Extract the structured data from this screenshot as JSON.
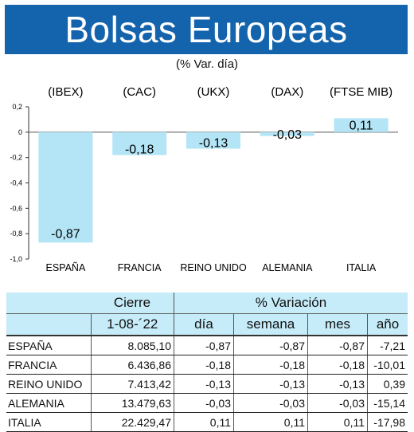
{
  "header": {
    "title": "Bolsas Europeas",
    "subtitle": "(% Var. día)"
  },
  "chart_data": {
    "type": "bar",
    "indices": [
      "(IBEX)",
      "(CAC)",
      "(UKX)",
      "(DAX)",
      "(FTSE MIB)"
    ],
    "categories": [
      "ESPAÑA",
      "FRANCIA",
      "REINO UNIDO",
      "ALEMANIA",
      "ITALIA"
    ],
    "values": [
      -0.87,
      -0.18,
      -0.13,
      -0.03,
      0.11
    ],
    "value_labels": [
      "-0,87",
      "-0,18",
      "-0,13",
      "-0,03",
      "0,11"
    ],
    "ylim": [
      -1.0,
      0.2
    ],
    "yticks": [
      0.2,
      0,
      -0.2,
      -0.4,
      -0.6,
      -0.8,
      -1.0
    ],
    "ytick_labels": [
      "0,2",
      "0",
      "-0,2",
      "-0,4",
      "-0,6",
      "-0,8",
      "-1,0"
    ],
    "grid": false,
    "bar_color": "#b3e5f6"
  },
  "table": {
    "group_cierre": "Cierre",
    "group_variacion": "% Variación",
    "date": "1-08-´22",
    "col_dia": "día",
    "col_semana": "semana",
    "col_mes": "mes",
    "col_anio": "año",
    "rows": [
      {
        "pais": "ESPAÑA",
        "cierre": "8.085,10",
        "dia": "-0,87",
        "semana": "-0,87",
        "mes": "-0,87",
        "anio": "-7,21"
      },
      {
        "pais": "FRANCIA",
        "cierre": "6.436,86",
        "dia": "-0,18",
        "semana": "-0,18",
        "mes": "-0,18",
        "anio": "-10,01"
      },
      {
        "pais": "REINO UNIDO",
        "cierre": "7.413,42",
        "dia": "-0,13",
        "semana": "-0,13",
        "mes": "-0,13",
        "anio": "0,39"
      },
      {
        "pais": "ALEMANIA",
        "cierre": "13.479,63",
        "dia": "-0,03",
        "semana": "-0,03",
        "mes": "-0,03",
        "anio": "-15,14"
      },
      {
        "pais": "ITALIA",
        "cierre": "22.429,47",
        "dia": "0,11",
        "semana": "0,11",
        "mes": "0,11",
        "anio": "-17,98"
      }
    ]
  },
  "colors": {
    "banner": "#1464ad",
    "table_header": "#c5ecf8"
  }
}
